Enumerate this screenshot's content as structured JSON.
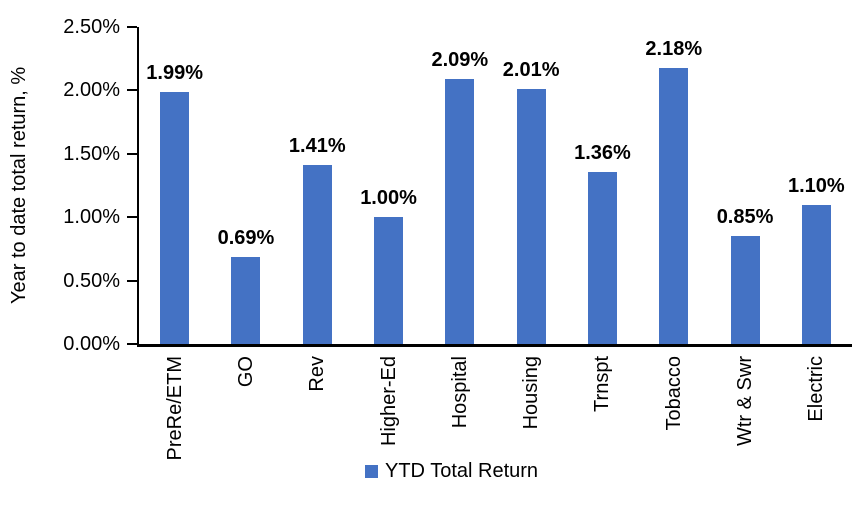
{
  "chart_data": {
    "type": "bar",
    "title": "",
    "xlabel": "",
    "ylabel": "Year to date total return, %",
    "categories": [
      "PreRe/ETM",
      "GO",
      "Rev",
      "Higher-Ed",
      "Hospital",
      "Housing",
      "Trnspt",
      "Tobacco",
      "Wtr & Swr",
      "Electric"
    ],
    "values": [
      1.99,
      0.69,
      1.41,
      1.0,
      2.09,
      2.01,
      1.36,
      2.18,
      0.85,
      1.1
    ],
    "value_labels": [
      "1.99%",
      "0.69%",
      "1.41%",
      "1.00%",
      "2.09%",
      "2.01%",
      "1.36%",
      "2.18%",
      "0.85%",
      "1.10%"
    ],
    "series": [
      {
        "name": "YTD Total Return",
        "color": "#4472C4"
      }
    ],
    "ylim": [
      0,
      2.5
    ],
    "yticks_values": [
      0,
      0.5,
      1.0,
      1.5,
      2.0,
      2.5
    ],
    "yticks_labels": [
      "0.00%",
      "0.50%",
      "1.00%",
      "1.50%",
      "2.00%",
      "2.50%"
    ],
    "grid": false,
    "legend_position": "bottom",
    "background_color": "#ffffff",
    "axis_color": "#000000",
    "bar_color": "#4472C4"
  },
  "legend": {
    "label": "YTD Total Return",
    "swatch_color": "#4472C4"
  }
}
